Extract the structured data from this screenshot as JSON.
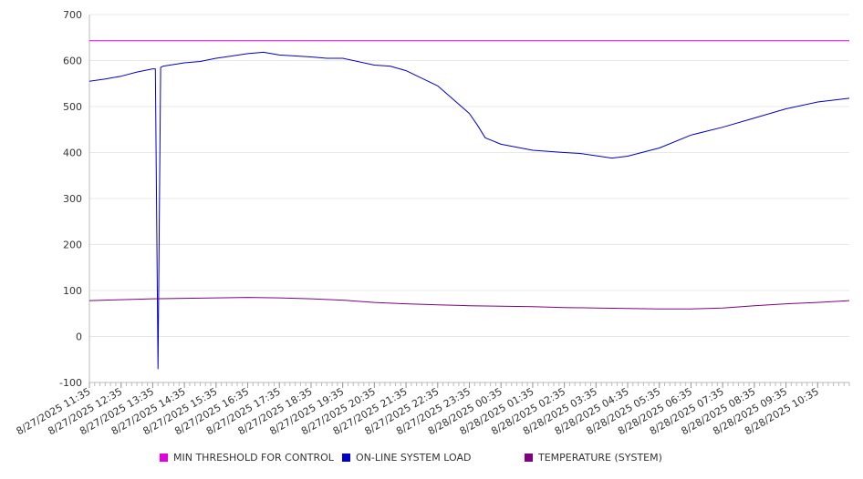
{
  "chart_data": {
    "type": "line",
    "ylim": [
      -100,
      700
    ],
    "y_ticks": [
      -100,
      0,
      100,
      200,
      300,
      400,
      500,
      600,
      700
    ],
    "x_tick_labels": [
      "8/27/2025 11:35",
      "8/27/2025 12:35",
      "8/27/2025 13:35",
      "8/27/2025 14:35",
      "8/27/2025 15:35",
      "8/27/2025 16:35",
      "8/27/2025 17:35",
      "8/27/2025 18:35",
      "8/27/2025 19:35",
      "8/27/2025 20:35",
      "8/27/2025 21:35",
      "8/27/2025 22:35",
      "8/27/2025 23:35",
      "8/28/2025 00:35",
      "8/28/2025 01:35",
      "8/28/2025 02:35",
      "8/28/2025 03:35",
      "8/28/2025 04:35",
      "8/28/2025 05:35",
      "8/28/2025 06:35",
      "8/28/2025 07:35",
      "8/28/2025 08:35",
      "8/28/2025 09:35",
      "8/28/2025 10:35"
    ],
    "x_range": [
      "8/27/2025 11:35",
      "8/28/2025 11:35"
    ],
    "grid": true,
    "legend_position": "bottom",
    "series": [
      {
        "name": "MIN THRESHOLD FOR CONTROL",
        "color": "#e000e0",
        "x": [
          "8/27/2025 11:35",
          "8/28/2025 11:35"
        ],
        "y": [
          643,
          643
        ]
      },
      {
        "name": "ON-LINE SYSTEM LOAD",
        "color": "#0000cc",
        "x": [
          "8/27/2025 11:35",
          "8/27/2025 12:05",
          "8/27/2025 12:35",
          "8/27/2025 13:05",
          "8/27/2025 13:35",
          "8/27/2025 13:40",
          "8/27/2025 13:45",
          "8/27/2025 13:50",
          "8/27/2025 13:55",
          "8/27/2025 14:35",
          "8/27/2025 15:05",
          "8/27/2025 15:35",
          "8/27/2025 16:35",
          "8/27/2025 17:05",
          "8/27/2025 17:35",
          "8/27/2025 18:35",
          "8/27/2025 19:05",
          "8/27/2025 19:35",
          "8/27/2025 20:35",
          "8/27/2025 21:05",
          "8/27/2025 21:35",
          "8/27/2025 22:35",
          "8/27/2025 23:05",
          "8/27/2025 23:35",
          "8/27/2025 23:50",
          "8/28/2025 00:05",
          "8/28/2025 00:35",
          "8/28/2025 01:35",
          "8/28/2025 02:35",
          "8/28/2025 03:05",
          "8/28/2025 03:35",
          "8/28/2025 04:05",
          "8/28/2025 04:35",
          "8/28/2025 05:35",
          "8/28/2025 06:35",
          "8/28/2025 07:35",
          "8/28/2025 08:35",
          "8/28/2025 09:35",
          "8/28/2025 10:35",
          "8/28/2025 11:35"
        ],
        "y": [
          555,
          560,
          566,
          575,
          582,
          582,
          -70,
          585,
          588,
          595,
          598,
          605,
          615,
          618,
          612,
          608,
          605,
          605,
          590,
          588,
          578,
          545,
          515,
          485,
          460,
          432,
          418,
          405,
          400,
          398,
          393,
          388,
          392,
          410,
          438,
          455,
          475,
          495,
          510,
          518
        ]
      },
      {
        "name": "TEMPERATURE (SYSTEM)",
        "color": "#800080",
        "x": [
          "8/27/2025 11:35",
          "8/27/2025 12:35",
          "8/27/2025 13:35",
          "8/27/2025 14:35",
          "8/27/2025 15:35",
          "8/27/2025 16:35",
          "8/27/2025 17:35",
          "8/27/2025 18:35",
          "8/27/2025 19:35",
          "8/27/2025 20:35",
          "8/27/2025 21:35",
          "8/27/2025 22:35",
          "8/27/2025 23:35",
          "8/28/2025 00:35",
          "8/28/2025 01:35",
          "8/28/2025 02:35",
          "8/28/2025 03:35",
          "8/28/2025 04:35",
          "8/28/2025 05:35",
          "8/28/2025 06:35",
          "8/28/2025 07:35",
          "8/28/2025 08:35",
          "8/28/2025 09:35",
          "8/28/2025 10:35",
          "8/28/2025 11:35"
        ],
        "y": [
          78,
          80,
          82,
          83,
          84,
          85,
          84,
          82,
          79,
          74,
          71,
          69,
          67,
          66,
          65,
          63,
          62,
          61,
          60,
          60,
          62,
          67,
          71,
          74,
          78
        ]
      }
    ]
  }
}
